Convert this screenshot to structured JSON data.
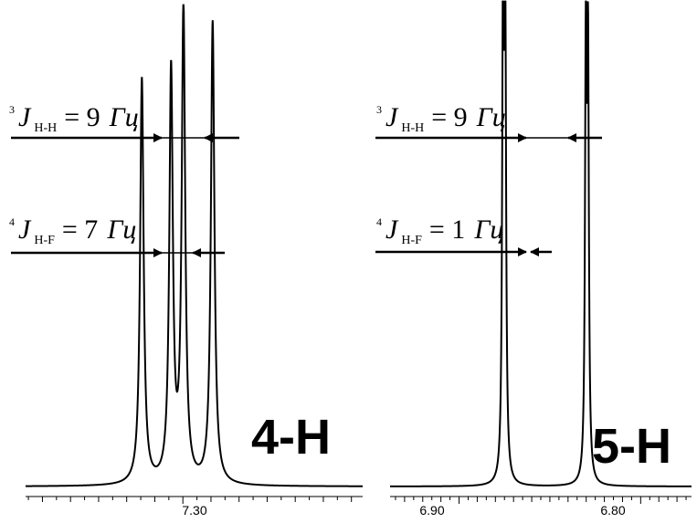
{
  "chart_data": [
    {
      "type": "line",
      "proton_label": "4-H",
      "x_ticks": [
        "7.30"
      ],
      "couplings": [
        {
          "prefix": "3",
          "symbol": "J",
          "sub": "H-H",
          "eq": "= 9",
          "unit": "Гц",
          "value_hz": 9
        },
        {
          "prefix": "4",
          "symbol": "J",
          "sub": "H-F",
          "eq": "= 7",
          "unit": "Гц",
          "value_hz": 7
        }
      ],
      "peaks_ppm": [
        7.3146,
        7.3042,
        7.2998,
        7.2894
      ],
      "peak_heights": [
        0.86,
        0.87,
        1.0,
        0.98
      ],
      "xlim_ppm": [
        7.356,
        7.236
      ],
      "grid": false
    },
    {
      "type": "line",
      "proton_label": "5-H",
      "x_ticks": [
        "6.90",
        "6.80"
      ],
      "couplings": [
        {
          "prefix": "3",
          "symbol": "J",
          "sub": "H-H",
          "eq": "= 9",
          "unit": "Гц",
          "value_hz": 9
        },
        {
          "prefix": "4",
          "symbol": "J",
          "sub": "H-F",
          "eq": "= 1",
          "unit": "Гц",
          "value_hz": 1
        }
      ],
      "peaks_ppm": [
        6.8758,
        6.8746,
        6.8302,
        6.829
      ],
      "peak_heights": [
        1.0,
        1.0,
        0.88,
        0.88
      ],
      "xlim_ppm": [
        6.938,
        6.772
      ],
      "grid": false
    }
  ]
}
